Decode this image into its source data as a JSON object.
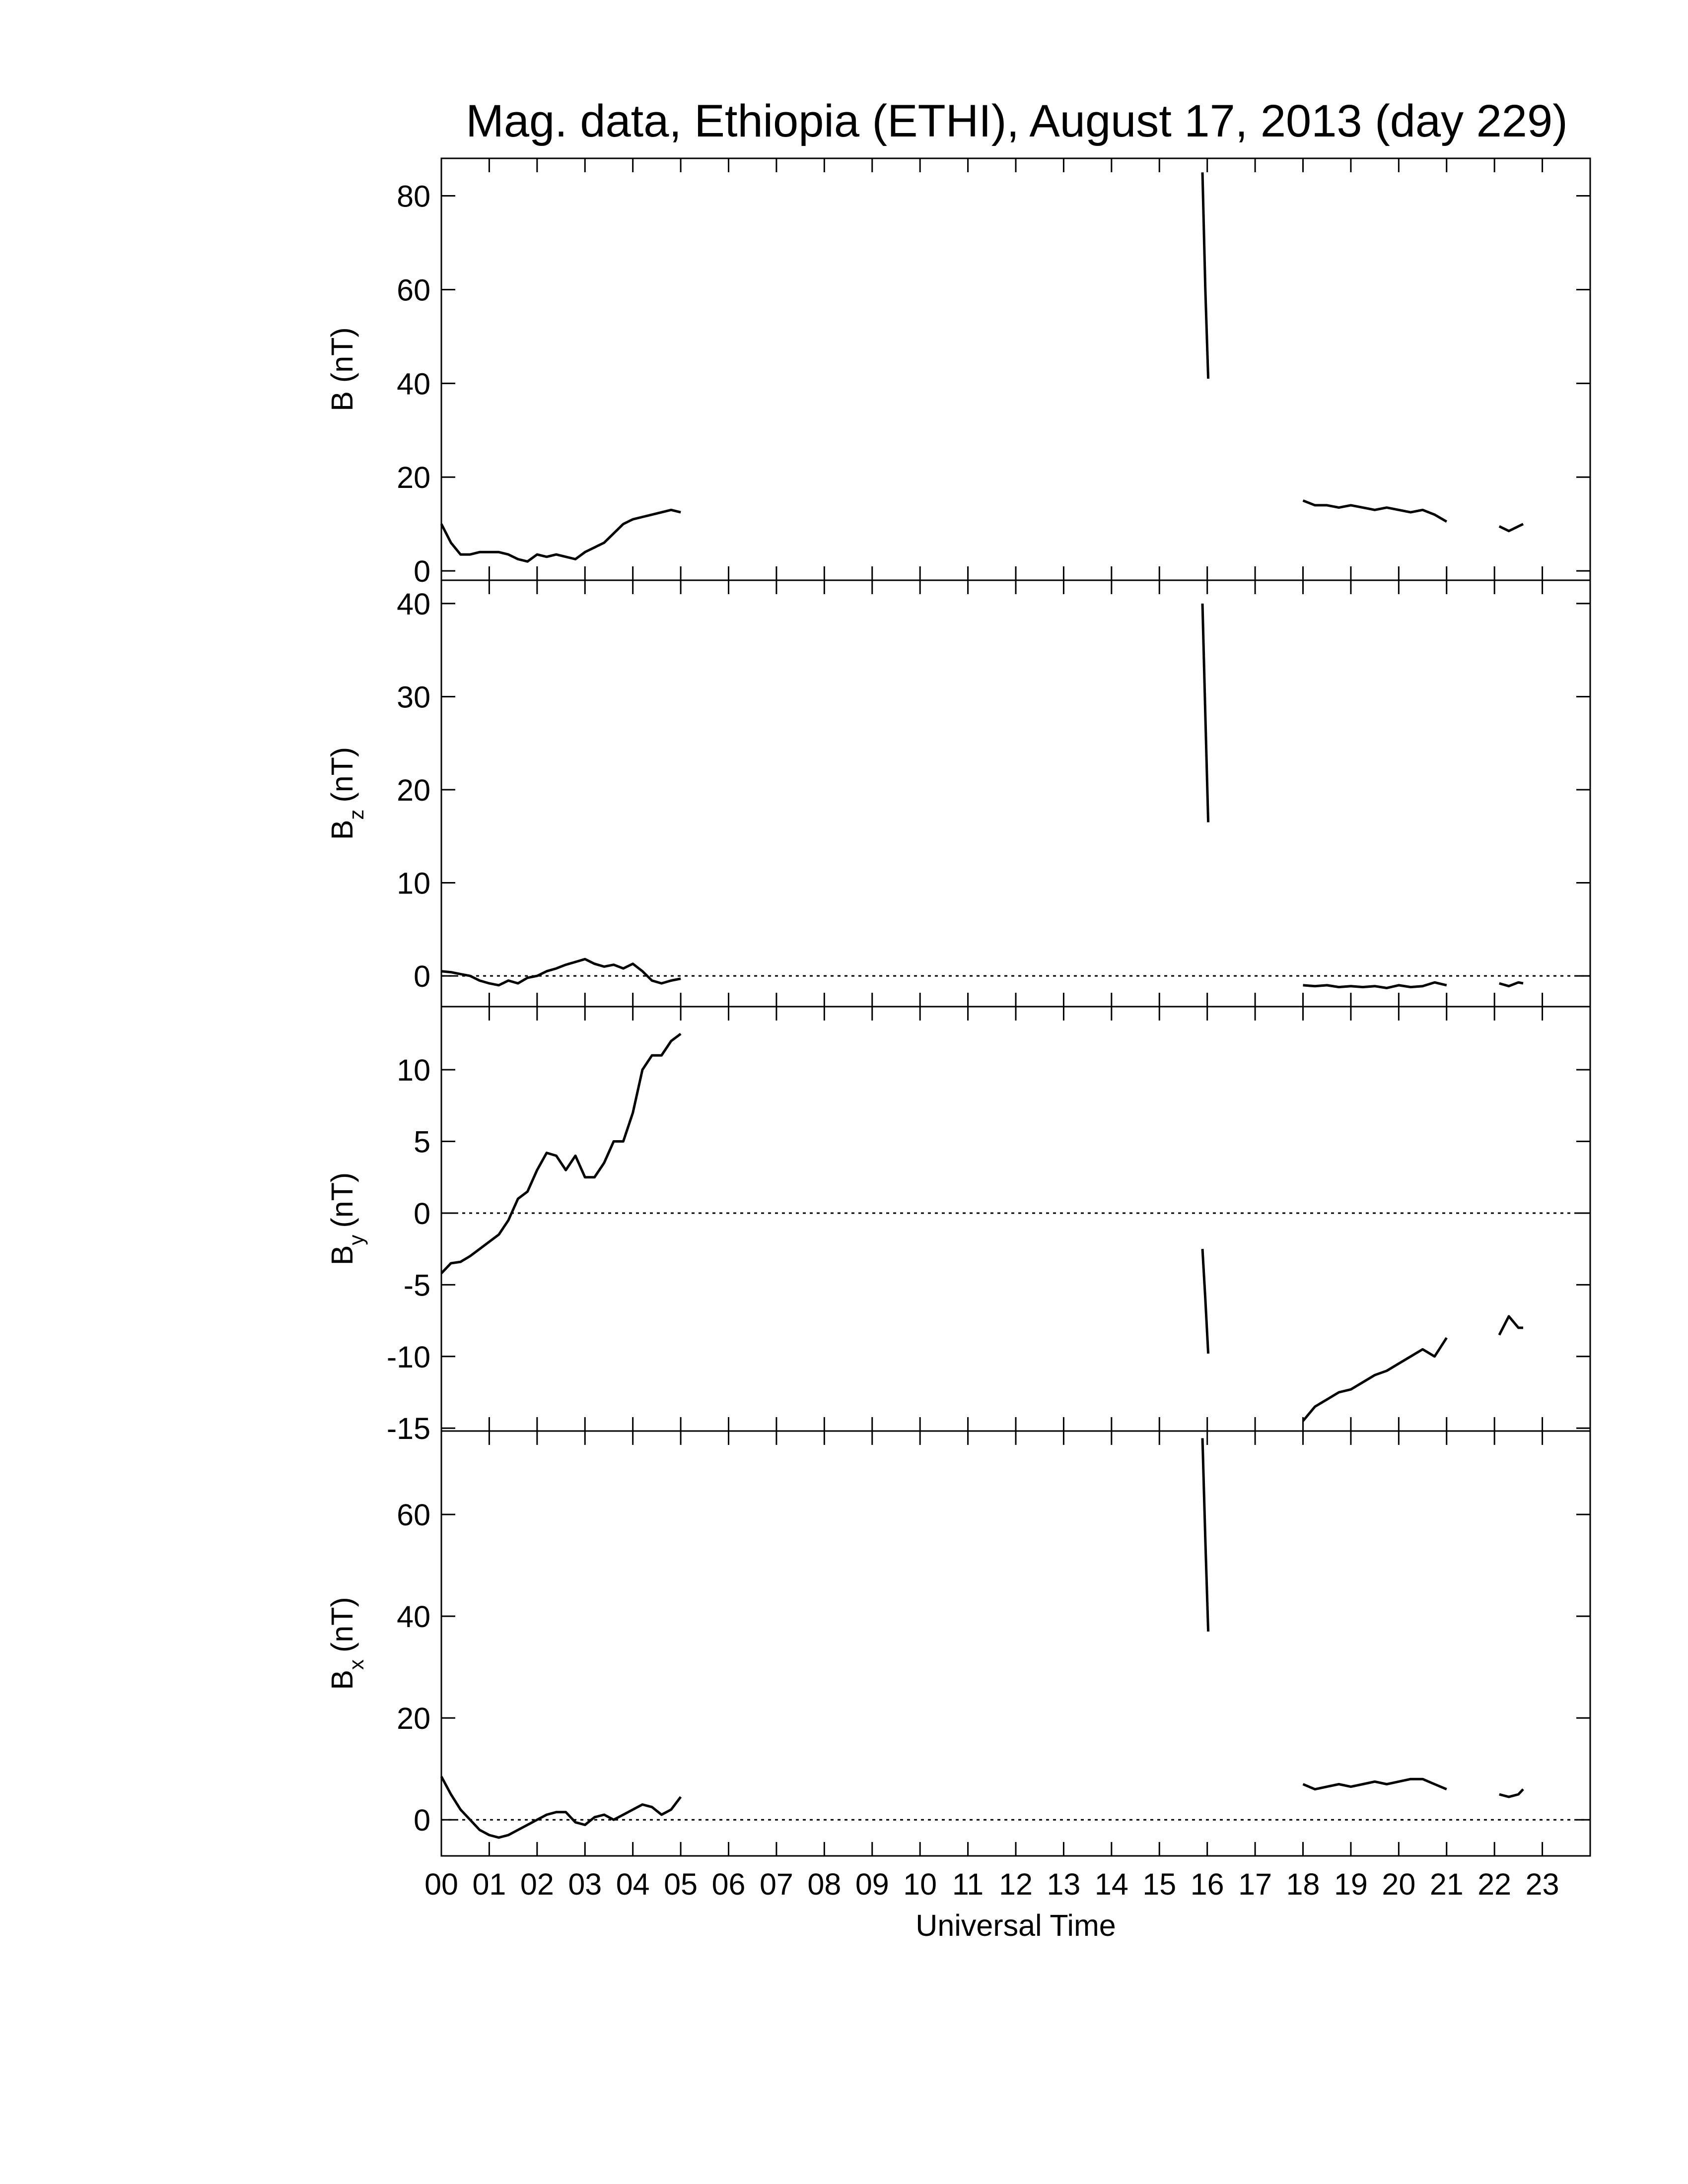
{
  "title": "Mag. data, Ethiopia (ETHI), August 17, 2013 (day 229)",
  "chart_data": [
    {
      "type": "line",
      "ylabel": "B (nT)",
      "color": "#000000",
      "zero_line": false,
      "xlim": [
        0,
        24
      ],
      "ylim": [
        -2,
        88
      ],
      "yticks": [
        0,
        20,
        40,
        60,
        80
      ],
      "x": [
        0,
        0.2,
        0.4,
        0.6,
        0.8,
        1,
        1.2,
        1.4,
        1.6,
        1.8,
        2,
        2.2,
        2.4,
        2.6,
        2.8,
        3,
        3.2,
        3.4,
        3.6,
        3.8,
        4,
        4.2,
        4.4,
        4.6,
        4.8,
        5,
        10,
        15.9,
        15.96,
        16.02,
        17,
        18,
        18.25,
        18.5,
        18.75,
        19,
        19.25,
        19.5,
        19.75,
        20,
        20.25,
        20.5,
        20.75,
        21,
        21.5,
        22.1,
        22.3,
        22.5,
        22.6
      ],
      "values": [
        10,
        6,
        3.5,
        3.5,
        4,
        4,
        4,
        3.5,
        2.5,
        2,
        3.5,
        3,
        3.5,
        3,
        2.5,
        4,
        5,
        6,
        8,
        10,
        11,
        11.5,
        12,
        12.5,
        13,
        12.5,
        null,
        85,
        60,
        41,
        null,
        15,
        14,
        14,
        13.5,
        14,
        13.5,
        13,
        13.5,
        13,
        12.5,
        13,
        12,
        10.5,
        null,
        9.5,
        8.5,
        9.5,
        10
      ]
    },
    {
      "type": "line",
      "ylabel": "B",
      "ylabel_sub": "z",
      "ylabel_unit": "(nT)",
      "color": "#000000",
      "zero_line": true,
      "xlim": [
        0,
        24
      ],
      "ylim": [
        -3.3,
        42.5
      ],
      "yticks": [
        0,
        10,
        20,
        30,
        40
      ],
      "x": [
        0,
        0.2,
        0.4,
        0.6,
        0.8,
        1,
        1.2,
        1.4,
        1.6,
        1.8,
        2,
        2.2,
        2.4,
        2.6,
        2.8,
        3,
        3.2,
        3.4,
        3.6,
        3.8,
        4,
        4.2,
        4.4,
        4.6,
        4.8,
        5,
        10,
        15.9,
        15.96,
        16.02,
        17,
        18,
        18.25,
        18.5,
        18.75,
        19,
        19.25,
        19.5,
        19.75,
        20,
        20.25,
        20.5,
        20.75,
        21,
        21.5,
        22.1,
        22.3,
        22.5,
        22.6
      ],
      "values": [
        0.5,
        0.4,
        0.2,
        0,
        -0.5,
        -0.8,
        -1,
        -0.5,
        -0.8,
        -0.2,
        0,
        0.5,
        0.8,
        1.2,
        1.5,
        1.8,
        1.3,
        1,
        1.2,
        0.8,
        1.3,
        0.5,
        -0.5,
        -0.8,
        -0.5,
        -0.3,
        null,
        40,
        28,
        16.5,
        null,
        -1,
        -1.1,
        -1,
        -1.2,
        -1.1,
        -1.2,
        -1.1,
        -1.3,
        -1,
        -1.2,
        -1.1,
        -0.7,
        -1,
        null,
        -0.8,
        -1.1,
        -0.7,
        -0.8
      ]
    },
    {
      "type": "line",
      "ylabel": "B",
      "ylabel_sub": "y",
      "ylabel_unit": "(nT)",
      "color": "#000000",
      "zero_line": true,
      "xlim": [
        0,
        24
      ],
      "ylim": [
        -15.2,
        14.4
      ],
      "yticks": [
        -15,
        -10,
        -5,
        0,
        5,
        10
      ],
      "x": [
        0,
        0.2,
        0.4,
        0.6,
        0.8,
        1,
        1.2,
        1.4,
        1.6,
        1.8,
        2,
        2.2,
        2.4,
        2.6,
        2.8,
        3,
        3.2,
        3.4,
        3.6,
        3.8,
        4,
        4.2,
        4.4,
        4.6,
        4.8,
        5,
        10,
        15.9,
        15.96,
        16.02,
        17,
        18,
        18.25,
        18.5,
        18.75,
        19,
        19.25,
        19.5,
        19.75,
        20,
        20.25,
        20.5,
        20.75,
        21,
        21.5,
        22.1,
        22.3,
        22.5,
        22.6
      ],
      "values": [
        -4.2,
        -3.5,
        -3.4,
        -3,
        -2.5,
        -2,
        -1.5,
        -0.5,
        1,
        1.5,
        3,
        4.2,
        4,
        3,
        4,
        2.5,
        2.5,
        3.5,
        5,
        5,
        7,
        10,
        11,
        11,
        12,
        12.5,
        null,
        -2.5,
        -6,
        -9.8,
        null,
        -14.5,
        -13.5,
        -13,
        -12.5,
        -12.3,
        -11.8,
        -11.3,
        -11,
        -10.5,
        -10,
        -9.5,
        -10,
        -8.7,
        null,
        -8.5,
        -7.2,
        -8,
        -8
      ]
    },
    {
      "type": "line",
      "ylabel": "B",
      "ylabel_sub": "x",
      "ylabel_unit": "(nT)",
      "color": "#000000",
      "zero_line": true,
      "xlabel": "Universal Time",
      "xlim": [
        0,
        24
      ],
      "ylim": [
        -7.1,
        76.4
      ],
      "yticks": [
        0,
        20,
        40,
        60
      ],
      "xticks": [
        {
          "value": 0,
          "label": "00"
        },
        {
          "value": 1,
          "label": "01"
        },
        {
          "value": 2,
          "label": "02"
        },
        {
          "value": 3,
          "label": "03"
        },
        {
          "value": 4,
          "label": "04"
        },
        {
          "value": 5,
          "label": "05"
        },
        {
          "value": 6,
          "label": "06"
        },
        {
          "value": 7,
          "label": "07"
        },
        {
          "value": 8,
          "label": "08"
        },
        {
          "value": 9,
          "label": "09"
        },
        {
          "value": 10,
          "label": "10"
        },
        {
          "value": 11,
          "label": "11"
        },
        {
          "value": 12,
          "label": "12"
        },
        {
          "value": 13,
          "label": "13"
        },
        {
          "value": 14,
          "label": "14"
        },
        {
          "value": 15,
          "label": "15"
        },
        {
          "value": 16,
          "label": "16"
        },
        {
          "value": 17,
          "label": "17"
        },
        {
          "value": 18,
          "label": "18"
        },
        {
          "value": 19,
          "label": "19"
        },
        {
          "value": 20,
          "label": "20"
        },
        {
          "value": 21,
          "label": "21"
        },
        {
          "value": 22,
          "label": "22"
        },
        {
          "value": 23,
          "label": "23"
        }
      ],
      "x": [
        0,
        0.2,
        0.4,
        0.6,
        0.8,
        1,
        1.2,
        1.4,
        1.6,
        1.8,
        2,
        2.2,
        2.4,
        2.6,
        2.8,
        3,
        3.2,
        3.4,
        3.6,
        3.8,
        4,
        4.2,
        4.4,
        4.6,
        4.8,
        5,
        10,
        15.9,
        15.96,
        16.02,
        17,
        18,
        18.25,
        18.5,
        18.75,
        19,
        19.25,
        19.5,
        19.75,
        20,
        20.25,
        20.5,
        20.75,
        21,
        21.5,
        22.1,
        22.3,
        22.5,
        22.6
      ],
      "values": [
        8.5,
        5,
        2,
        0,
        -2,
        -3,
        -3.5,
        -3,
        -2,
        -1,
        0,
        1,
        1.5,
        1.5,
        -0.5,
        -1,
        0.5,
        1,
        0,
        1,
        2,
        3,
        2.5,
        1,
        2,
        4.5,
        null,
        75,
        55,
        37,
        null,
        7,
        6,
        6.5,
        7,
        6.5,
        7,
        7.5,
        7,
        7.5,
        8,
        8,
        7,
        6,
        null,
        5,
        4.5,
        5,
        6
      ]
    }
  ]
}
